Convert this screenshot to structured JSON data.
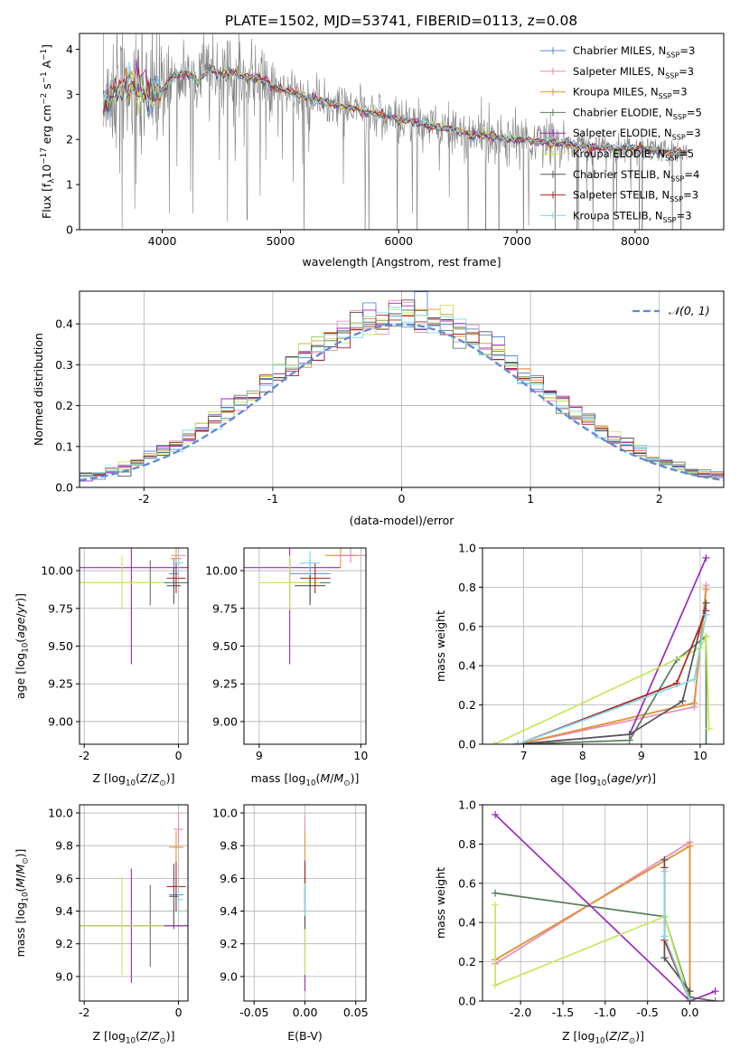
{
  "figure": {
    "title": "PLATE=1502, MJD=53741, FIBERID=0113, z=0.08"
  },
  "colors": {
    "Chabrier MILES": "#5b8bd6",
    "Salpeter MILES": "#e88ab5",
    "Kroupa MILES": "#e8952b",
    "Chabrier ELODIE": "#597c5d",
    "Salpeter ELODIE": "#9a2ac0",
    "Kroupa ELODIE": "#c5e85a",
    "Chabrier STELIB": "#555555",
    "Salpeter STELIB": "#b22222",
    "Kroupa STELIB": "#7fd8e8",
    "data": "#808080",
    "gauss": "#5b8bd6",
    "grid": "#b0b0b0"
  },
  "chart_data": [
    {
      "id": "spectrum",
      "type": "line",
      "title": "PLATE=1502, MJD=53741, FIBERID=0113, z=0.08",
      "xlabel": "wavelength [Angstrom, rest frame]",
      "ylabel": "Flux [f_λ 10^-17 erg cm^-2 s^-1 A^-1]",
      "xlim": [
        3300,
        8750
      ],
      "ylim": [
        0,
        4.35
      ],
      "xticks": [
        4000,
        5000,
        6000,
        7000,
        8000
      ],
      "yticks": [
        0,
        1,
        2,
        3,
        4
      ],
      "grid": false,
      "legend_position": "top-right",
      "legend": [
        "Chabrier MILES, NSSP=3",
        "Salpeter MILES, NSSP=3",
        "Kroupa MILES, NSSP=3",
        "Chabrier ELODIE, NSSP=5",
        "Salpeter ELODIE, NSSP=3",
        "Kroupa ELODIE, NSSP=5",
        "Chabrier STELIB, NSSP=4",
        "Salpeter STELIB, NSSP=3",
        "Kroupa STELIB, NSSP=3"
      ],
      "model_curve": {
        "x": [
          3500,
          3600,
          3700,
          3800,
          3900,
          4000,
          4100,
          4200,
          4300,
          4400,
          4500,
          4600,
          4700,
          4800,
          4900,
          5000,
          5200,
          5400,
          5600,
          5800,
          6000,
          6200,
          6400,
          6600,
          6800,
          7000,
          7200,
          7400,
          7600,
          7800,
          8000,
          8200,
          8400
        ],
        "y": [
          2.8,
          3.15,
          3.2,
          3.1,
          3.0,
          3.1,
          3.4,
          3.5,
          3.3,
          3.55,
          3.45,
          3.5,
          3.4,
          3.35,
          3.25,
          3.1,
          2.95,
          2.8,
          2.7,
          2.55,
          2.45,
          2.35,
          2.25,
          2.1,
          2.05,
          2.0,
          1.95,
          1.9,
          1.85,
          1.8,
          1.8,
          1.75,
          1.7
        ]
      }
    },
    {
      "id": "residuals",
      "type": "line",
      "xlabel": "(data-model)/error",
      "ylabel": "Normed distribution",
      "xlim": [
        -2.5,
        2.5
      ],
      "ylim": [
        0,
        0.48
      ],
      "xticks": [
        -2,
        -1,
        0,
        1,
        2
      ],
      "yticks": [
        0.0,
        0.1,
        0.2,
        0.3,
        0.4
      ],
      "grid": true,
      "legend": [
        "𝒩(0, 1)"
      ],
      "legend_position": "top-right"
    },
    {
      "id": "age_vs_Z",
      "type": "scatter",
      "xlabel": "Z [log10(Z/Z⊙)]",
      "ylabel": "age  [log10(age/yr)]",
      "xlim": [
        -2.1,
        0.2
      ],
      "ylim": [
        8.85,
        10.15
      ],
      "xticks": [
        -2,
        0
      ],
      "yticks": [
        9.0,
        9.25,
        9.5,
        9.75,
        10.0
      ],
      "grid": true,
      "points": [
        {
          "model": "Chabrier MILES",
          "x": -0.1,
          "y": 9.98,
          "xerr": 0.1,
          "yerr": 0.1
        },
        {
          "model": "Salpeter MILES",
          "x": 0.0,
          "y": 10.1,
          "xerr": 0.15,
          "yerr": 0.05
        },
        {
          "model": "Kroupa MILES",
          "x": -0.05,
          "y": 10.08,
          "xerr": 0.12,
          "yerr": 0.08
        },
        {
          "model": "Chabrier ELODIE",
          "x": -0.6,
          "y": 9.92,
          "xerr": 1.5,
          "yerr": 0.15
        },
        {
          "model": "Salpeter ELODIE",
          "x": -1.0,
          "y": 10.02,
          "xerr": 1.9,
          "yerr": 0.64
        },
        {
          "model": "Kroupa ELODIE",
          "x": -1.2,
          "y": 9.92,
          "xerr": 0.9,
          "yerr": 0.18
        },
        {
          "model": "Chabrier STELIB",
          "x": -0.1,
          "y": 9.9,
          "xerr": 0.15,
          "yerr": 0.12
        },
        {
          "model": "Salpeter STELIB",
          "x": -0.05,
          "y": 9.95,
          "xerr": 0.2,
          "yerr": 0.1
        },
        {
          "model": "Kroupa STELIB",
          "x": 0.0,
          "y": 10.05,
          "xerr": 0.1,
          "yerr": 0.08
        }
      ]
    },
    {
      "id": "age_vs_mass",
      "type": "scatter",
      "xlabel": "mass [log10(M/M⊙)]",
      "xlim": [
        8.85,
        10.05
      ],
      "ylim": [
        8.85,
        10.15
      ],
      "xticks": [
        9,
        10
      ],
      "yticks": [
        9.0,
        9.25,
        9.5,
        9.75,
        10.0
      ],
      "grid": true,
      "points": [
        {
          "model": "Chabrier MILES",
          "x": 9.5,
          "y": 9.98,
          "xerr": 0.2,
          "yerr": 0.1
        },
        {
          "model": "Salpeter MILES",
          "x": 9.9,
          "y": 10.1,
          "xerr": 0.15,
          "yerr": 0.05
        },
        {
          "model": "Kroupa MILES",
          "x": 9.8,
          "y": 10.1,
          "xerr": 0.15,
          "yerr": 0.08
        },
        {
          "model": "Chabrier ELODIE",
          "x": 9.5,
          "y": 9.92,
          "xerr": 0.2,
          "yerr": 0.15
        },
        {
          "model": "Salpeter ELODIE",
          "x": 9.3,
          "y": 10.02,
          "xerr": 0.5,
          "yerr": 0.64
        },
        {
          "model": "Kroupa ELODIE",
          "x": 9.3,
          "y": 9.92,
          "xerr": 0.3,
          "yerr": 0.18
        },
        {
          "model": "Chabrier STELIB",
          "x": 9.5,
          "y": 9.9,
          "xerr": 0.15,
          "yerr": 0.12
        },
        {
          "model": "Salpeter STELIB",
          "x": 9.55,
          "y": 9.95,
          "xerr": 0.15,
          "yerr": 0.1
        },
        {
          "model": "Kroupa STELIB",
          "x": 9.5,
          "y": 10.05,
          "xerr": 0.1,
          "yerr": 0.08
        }
      ]
    },
    {
      "id": "weight_vs_age",
      "type": "line",
      "xlabel": "age  [log10(age/yr)]",
      "ylabel": "mass weight",
      "xlim": [
        6.3,
        10.4
      ],
      "ylim": [
        0,
        1.0
      ],
      "xticks": [
        7,
        8,
        9,
        10
      ],
      "yticks": [
        0.0,
        0.2,
        0.4,
        0.6,
        0.8,
        1.0
      ],
      "grid": true,
      "series": [
        {
          "model": "Chabrier MILES",
          "x": [
            6.9,
            9.9,
            10.1
          ],
          "y": [
            0.0,
            0.21,
            0.79
          ]
        },
        {
          "model": "Salpeter MILES",
          "x": [
            6.9,
            9.9,
            10.1
          ],
          "y": [
            0.0,
            0.19,
            0.81
          ]
        },
        {
          "model": "Kroupa MILES",
          "x": [
            6.9,
            9.9,
            10.1
          ],
          "y": [
            0.0,
            0.21,
            0.79
          ]
        },
        {
          "model": "Chabrier ELODIE",
          "x": [
            6.9,
            8.8,
            9.6,
            10.1,
            10.1
          ],
          "y": [
            0.0,
            0.02,
            0.43,
            0.55,
            0.0
          ]
        },
        {
          "model": "Salpeter ELODIE",
          "x": [
            6.9,
            8.8,
            10.1
          ],
          "y": [
            0.0,
            0.05,
            0.95
          ]
        },
        {
          "model": "Kroupa ELODIE",
          "x": [
            6.5,
            10.0,
            10.1,
            10.15
          ],
          "y": [
            0.0,
            0.49,
            0.55,
            0.08
          ]
        },
        {
          "model": "Chabrier STELIB",
          "x": [
            6.9,
            8.8,
            9.7,
            10.1
          ],
          "y": [
            0.0,
            0.05,
            0.22,
            0.72
          ]
        },
        {
          "model": "Salpeter STELIB",
          "x": [
            6.9,
            9.6,
            10.1
          ],
          "y": [
            0.0,
            0.31,
            0.68
          ]
        },
        {
          "model": "Kroupa STELIB",
          "x": [
            6.9,
            9.9,
            10.1
          ],
          "y": [
            0.0,
            0.33,
            0.66
          ]
        }
      ]
    },
    {
      "id": "mass_vs_Z",
      "type": "scatter",
      "xlabel": "Z [log10(Z/Z⊙)]",
      "ylabel": "mass [log10(M/M⊙)]",
      "xlim": [
        -2.1,
        0.2
      ],
      "ylim": [
        8.85,
        10.05
      ],
      "xticks": [
        -2,
        0
      ],
      "yticks": [
        9.0,
        9.2,
        9.4,
        9.6,
        9.8,
        10.0
      ],
      "grid": true,
      "points": [
        {
          "model": "Chabrier MILES",
          "x": -0.05,
          "y": 9.5,
          "xerr": 0.15,
          "yerr": 0.1
        },
        {
          "model": "Salpeter MILES",
          "x": 0.0,
          "y": 9.9,
          "xerr": 0.1,
          "yerr": 0.1
        },
        {
          "model": "Kroupa MILES",
          "x": -0.05,
          "y": 9.79,
          "xerr": 0.15,
          "yerr": 0.1
        },
        {
          "model": "Chabrier ELODIE",
          "x": -0.6,
          "y": 9.31,
          "xerr": 1.5,
          "yerr": 0.25
        },
        {
          "model": "Salpeter ELODIE",
          "x": -1.0,
          "y": 9.31,
          "xerr": 1.3,
          "yerr": 0.35
        },
        {
          "model": "Kroupa ELODIE",
          "x": -1.2,
          "y": 9.31,
          "xerr": 0.9,
          "yerr": 0.3
        },
        {
          "model": "Chabrier STELIB",
          "x": -0.1,
          "y": 9.49,
          "xerr": 0.1,
          "yerr": 0.2
        },
        {
          "model": "Salpeter STELIB",
          "x": -0.05,
          "y": 9.55,
          "xerr": 0.2,
          "yerr": 0.15
        },
        {
          "model": "Kroupa STELIB",
          "x": 0.0,
          "y": 9.47,
          "xerr": 0.1,
          "yerr": 0.1
        }
      ]
    },
    {
      "id": "mass_vs_ebv",
      "type": "scatter",
      "xlabel": "E(B-V)",
      "xlim": [
        -0.06,
        0.06
      ],
      "ylim": [
        8.85,
        10.05
      ],
      "xticks": [
        -0.05,
        0.0,
        0.05
      ],
      "yticks": [
        9.0,
        9.2,
        9.4,
        9.6,
        9.8,
        10.0
      ],
      "grid": true,
      "points": [
        {
          "model": "Chabrier MILES",
          "x": 0.0,
          "y": 9.5,
          "yerr": 0.1
        },
        {
          "model": "Salpeter MILES",
          "x": 0.0,
          "y": 9.9,
          "yerr": 0.08
        },
        {
          "model": "Kroupa MILES",
          "x": 0.0,
          "y": 9.79,
          "yerr": 0.1
        },
        {
          "model": "Chabrier ELODIE",
          "x": 0.0,
          "y": 9.31,
          "yerr": 0.25
        },
        {
          "model": "Salpeter ELODIE",
          "x": 0.0,
          "y": 9.31,
          "yerr": 0.4
        },
        {
          "model": "Kroupa ELODIE",
          "x": 0.0,
          "y": 9.31,
          "yerr": 0.3
        },
        {
          "model": "Chabrier STELIB",
          "x": 0.0,
          "y": 9.49,
          "yerr": 0.2
        },
        {
          "model": "Salpeter STELIB",
          "x": 0.0,
          "y": 9.55,
          "yerr": 0.15
        },
        {
          "model": "Kroupa STELIB",
          "x": 0.0,
          "y": 9.47,
          "yerr": 0.1
        }
      ]
    },
    {
      "id": "weight_vs_Z",
      "type": "line",
      "xlabel": "Z [log10(Z/Z⊙)]",
      "ylabel": "mass weight",
      "xlim": [
        -2.45,
        0.4
      ],
      "ylim": [
        0,
        1.0
      ],
      "xticks": [
        -2.0,
        -1.5,
        -1.0,
        -0.5,
        0.0
      ],
      "yticks": [
        0.0,
        0.2,
        0.4,
        0.6,
        0.8,
        1.0
      ],
      "grid": true,
      "series": [
        {
          "model": "Chabrier MILES",
          "x": [
            -2.3,
            0.0,
            0.0
          ],
          "y": [
            0.21,
            0.79,
            0.0
          ]
        },
        {
          "model": "Salpeter MILES",
          "x": [
            -2.3,
            0.0,
            0.0
          ],
          "y": [
            0.19,
            0.81,
            0.0
          ]
        },
        {
          "model": "Kroupa MILES",
          "x": [
            -2.3,
            0.0,
            0.0
          ],
          "y": [
            0.21,
            0.79,
            0.0
          ]
        },
        {
          "model": "Chabrier ELODIE",
          "x": [
            -2.3,
            -0.3,
            0.0,
            0.3
          ],
          "y": [
            0.55,
            0.43,
            0.02,
            0.0
          ]
        },
        {
          "model": "Salpeter ELODIE",
          "x": [
            -2.3,
            0.0,
            0.3
          ],
          "y": [
            0.95,
            0.0,
            0.05
          ]
        },
        {
          "model": "Kroupa ELODIE",
          "x": [
            -2.3,
            -2.3,
            -0.3,
            0.0
          ],
          "y": [
            0.49,
            0.08,
            0.43,
            0.0
          ]
        },
        {
          "model": "Chabrier STELIB",
          "x": [
            -0.3,
            -0.3,
            0.0
          ],
          "y": [
            0.72,
            0.22,
            0.05
          ]
        },
        {
          "model": "Salpeter STELIB",
          "x": [
            -0.3,
            -0.3,
            0.0
          ],
          "y": [
            0.68,
            0.31,
            0.0
          ]
        },
        {
          "model": "Kroupa STELIB",
          "x": [
            -0.3,
            -0.3,
            0.0
          ],
          "y": [
            0.66,
            0.33,
            0.0
          ]
        }
      ]
    }
  ]
}
